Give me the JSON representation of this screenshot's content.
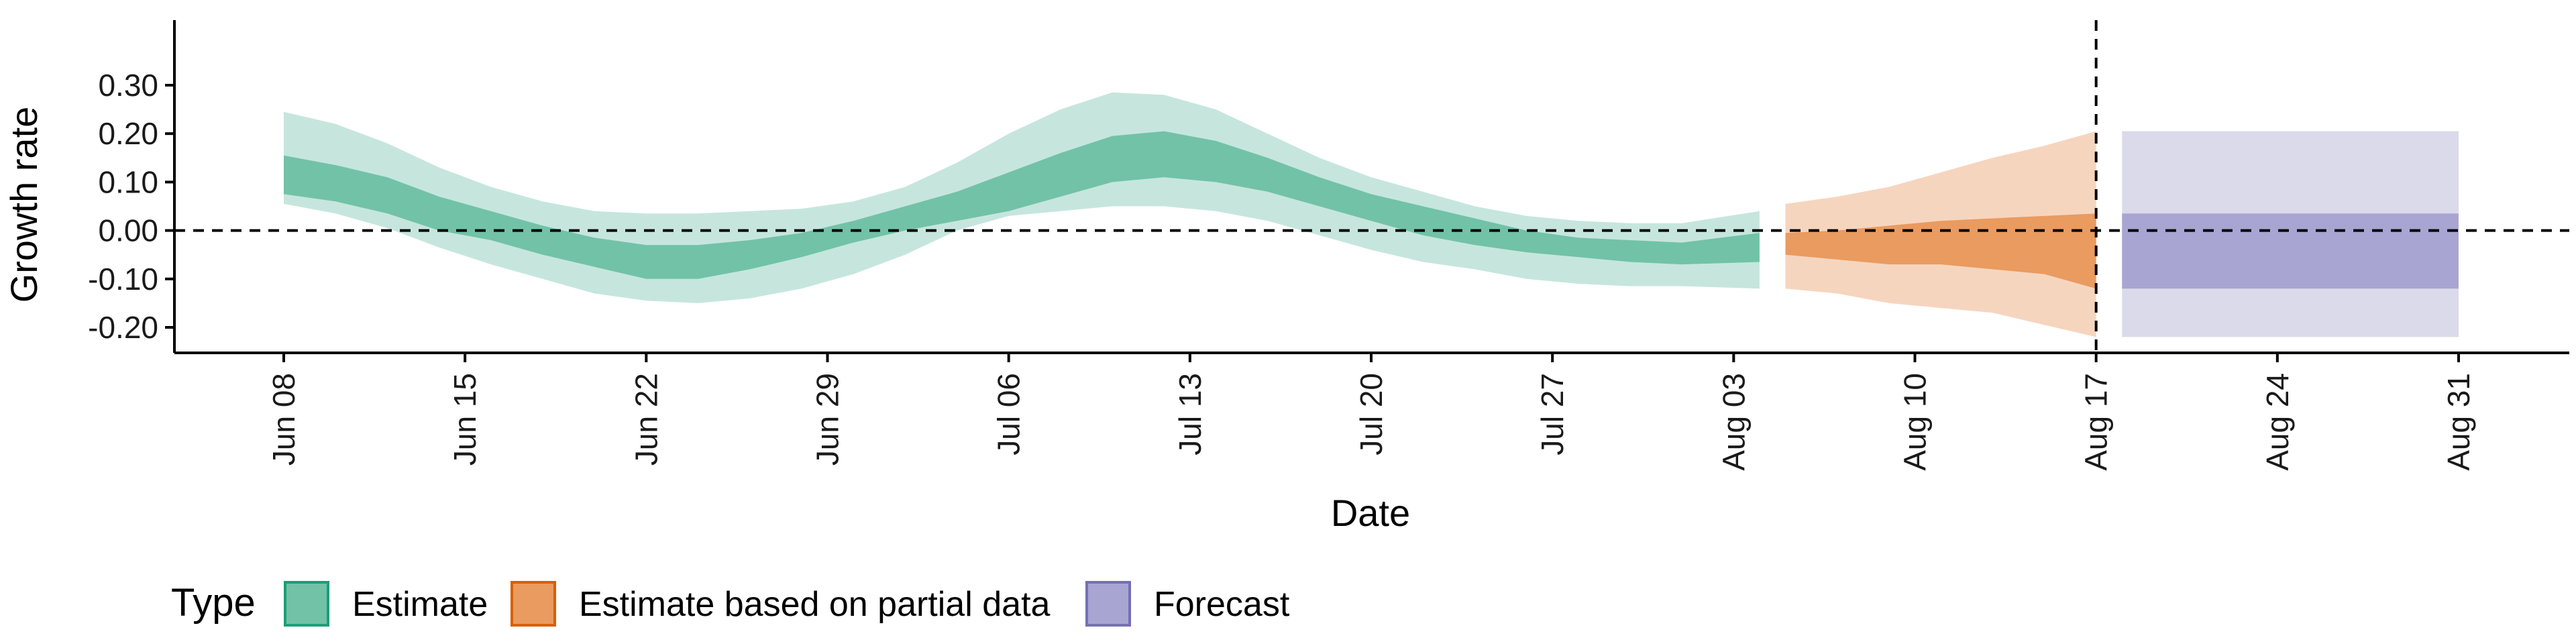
{
  "chart_data": {
    "type": "area",
    "xlabel": "Date",
    "ylabel": "Growth rate",
    "xlim": [
      "2021-06-08",
      "2021-08-31"
    ],
    "ylim": [
      -0.24,
      0.31
    ],
    "grid": false,
    "y_ticks": [
      0.3,
      0.2,
      0.1,
      0.0,
      -0.1,
      -0.2
    ],
    "y_tick_labels": [
      "0.30",
      "0.20",
      "0.10",
      "0.00",
      "-0.10",
      "-0.20"
    ],
    "x_ticks": [
      "2021-06-08",
      "2021-06-15",
      "2021-06-22",
      "2021-06-29",
      "2021-07-06",
      "2021-07-13",
      "2021-07-20",
      "2021-07-27",
      "2021-08-03",
      "2021-08-10",
      "2021-08-17",
      "2021-08-24",
      "2021-08-31"
    ],
    "x_tick_labels": [
      "Jun 08",
      "Jun 15",
      "Jun 22",
      "Jun 29",
      "Jul 06",
      "Jul 13",
      "Jul 20",
      "Jul 27",
      "Aug 03",
      "Aug 10",
      "Aug 17",
      "Aug 24",
      "Aug 31"
    ],
    "reference_lines": {
      "horizontal_y": 0,
      "vertical_date": "2021-08-17",
      "style": "dashed"
    },
    "legend": {
      "title": "Type",
      "position": "bottom-left",
      "entries": [
        "Estimate",
        "Estimate based on partial data",
        "Forecast"
      ]
    },
    "series": [
      {
        "name": "Estimate",
        "color_outer": "#c6e6dd",
        "color_inner": "#72c2a7",
        "color_border": "#1b9e77",
        "dates": [
          "2021-06-08",
          "2021-06-10",
          "2021-06-12",
          "2021-06-14",
          "2021-06-16",
          "2021-06-18",
          "2021-06-20",
          "2021-06-22",
          "2021-06-24",
          "2021-06-26",
          "2021-06-28",
          "2021-06-30",
          "2021-07-02",
          "2021-07-04",
          "2021-07-06",
          "2021-07-08",
          "2021-07-10",
          "2021-07-12",
          "2021-07-14",
          "2021-07-16",
          "2021-07-18",
          "2021-07-20",
          "2021-07-22",
          "2021-07-24",
          "2021-07-26",
          "2021-07-28",
          "2021-07-30",
          "2021-08-01",
          "2021-08-04"
        ],
        "outer_upper": [
          0.245,
          0.22,
          0.18,
          0.13,
          0.09,
          0.06,
          0.04,
          0.035,
          0.035,
          0.04,
          0.045,
          0.06,
          0.09,
          0.14,
          0.2,
          0.25,
          0.285,
          0.28,
          0.25,
          0.2,
          0.15,
          0.11,
          0.08,
          0.05,
          0.03,
          0.02,
          0.015,
          0.015,
          0.04
        ],
        "inner_upper": [
          0.155,
          0.135,
          0.11,
          0.07,
          0.04,
          0.01,
          -0.015,
          -0.03,
          -0.03,
          -0.02,
          -0.005,
          0.02,
          0.05,
          0.08,
          0.12,
          0.16,
          0.195,
          0.205,
          0.185,
          0.15,
          0.11,
          0.075,
          0.05,
          0.025,
          0.0,
          -0.015,
          -0.02,
          -0.025,
          -0.005
        ],
        "inner_lower": [
          0.075,
          0.06,
          0.035,
          0.0,
          -0.02,
          -0.05,
          -0.075,
          -0.1,
          -0.1,
          -0.08,
          -0.055,
          -0.025,
          0.0,
          0.02,
          0.04,
          0.07,
          0.1,
          0.11,
          0.1,
          0.08,
          0.05,
          0.02,
          -0.01,
          -0.03,
          -0.045,
          -0.055,
          -0.065,
          -0.07,
          -0.065
        ],
        "outer_lower": [
          0.055,
          0.035,
          0.005,
          -0.035,
          -0.07,
          -0.1,
          -0.13,
          -0.145,
          -0.15,
          -0.14,
          -0.12,
          -0.09,
          -0.05,
          0.0,
          0.03,
          0.04,
          0.05,
          0.05,
          0.04,
          0.02,
          -0.01,
          -0.04,
          -0.065,
          -0.08,
          -0.1,
          -0.11,
          -0.115,
          -0.115,
          -0.12
        ]
      },
      {
        "name": "Estimate based on partial data",
        "color_outer": "#f6d5bf",
        "color_inner": "#ea9b5f",
        "color_border": "#d95f02",
        "dates": [
          "2021-08-05",
          "2021-08-07",
          "2021-08-09",
          "2021-08-11",
          "2021-08-13",
          "2021-08-15",
          "2021-08-17"
        ],
        "outer_upper": [
          0.055,
          0.07,
          0.09,
          0.12,
          0.15,
          0.175,
          0.205
        ],
        "inner_upper": [
          -0.005,
          0.0,
          0.01,
          0.02,
          0.025,
          0.03,
          0.035
        ],
        "inner_lower": [
          -0.05,
          -0.06,
          -0.07,
          -0.07,
          -0.08,
          -0.09,
          -0.12
        ],
        "outer_lower": [
          -0.12,
          -0.13,
          -0.15,
          -0.16,
          -0.17,
          -0.195,
          -0.22
        ]
      },
      {
        "name": "Forecast",
        "color_outer": "#dadaea",
        "color_inner": "#a9a5d2",
        "color_border": "#7570b3",
        "dates": [
          "2021-08-18",
          "2021-08-31"
        ],
        "outer_upper": [
          0.205,
          0.205
        ],
        "inner_upper": [
          0.035,
          0.035
        ],
        "inner_lower": [
          -0.12,
          -0.12
        ],
        "outer_lower": [
          -0.22,
          -0.22
        ]
      }
    ]
  }
}
